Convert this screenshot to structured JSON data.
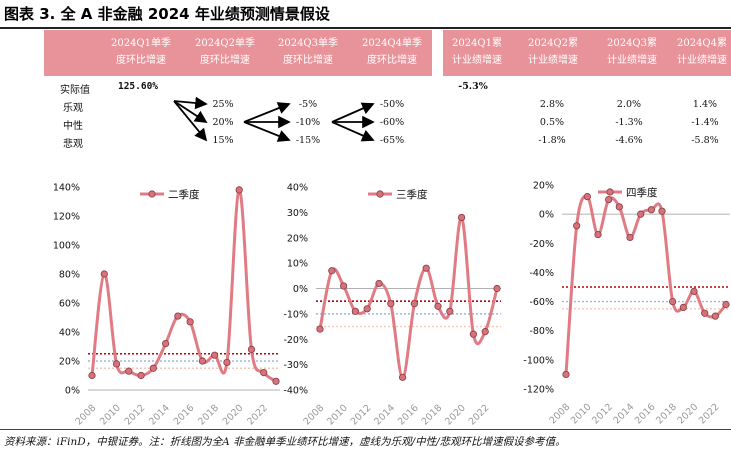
{
  "title": "图表 3. 全 A 非金融 2024 年业绩预测情景假设",
  "table": {
    "headers_single": [
      "2024Q1单季\n度环比增速",
      "2024Q2单季\n度环比增速",
      "2024Q3单季\n度环比增速",
      "2024Q4单季\n度环比增速"
    ],
    "headers_cum": [
      "2024Q1累\n计业绩增速",
      "2024Q2累\n计业绩增速",
      "2024Q3累\n计业绩增速",
      "2024Q4累\n计业绩增速"
    ],
    "row_labels": [
      "实际值",
      "乐观",
      "中性",
      "悲观"
    ],
    "actual_q1": "125.60%",
    "actual_cum_q1": "-5.3%",
    "q2": [
      "25%",
      "20%",
      "15%"
    ],
    "q3": [
      "-5%",
      "-10%",
      "-15%"
    ],
    "q4": [
      "-50%",
      "-60%",
      "-65%"
    ],
    "cum_q2": [
      "2.8%",
      "0.5%",
      "-1.8%"
    ],
    "cum_q3": [
      "2.0%",
      "-1.3%",
      "-4.6%"
    ],
    "cum_q4": [
      "1.4%",
      "-1.4%",
      "-5.8%"
    ]
  },
  "colors": {
    "header_bg": "#e8939a",
    "line": "#e07b84",
    "marker": "#d5727c",
    "optimistic": "#c00000",
    "neutral": "#9bb7e0",
    "pessimistic": "#f4c6b6"
  },
  "chart_data": [
    {
      "type": "line",
      "legend": "二季度",
      "x": [
        2008,
        2009,
        2010,
        2011,
        2012,
        2013,
        2014,
        2015,
        2016,
        2017,
        2018,
        2019,
        2020,
        2021,
        2022,
        2023
      ],
      "values": [
        10,
        80,
        18,
        13,
        10,
        15,
        32,
        51,
        47,
        20,
        24,
        19,
        138,
        28,
        12,
        6
      ],
      "ylim": [
        0,
        140
      ],
      "yticks": [
        "0%",
        "20%",
        "40%",
        "60%",
        "80%",
        "100%",
        "120%",
        "140%"
      ],
      "xticks": [
        "2008",
        "2010",
        "2012",
        "2014",
        "2016",
        "2018",
        "2020",
        "2022"
      ],
      "ref_lines": [
        25,
        20,
        15
      ]
    },
    {
      "type": "line",
      "legend": "三季度",
      "x": [
        2008,
        2009,
        2010,
        2011,
        2012,
        2013,
        2014,
        2015,
        2016,
        2017,
        2018,
        2019,
        2020,
        2021,
        2022,
        2023
      ],
      "values": [
        -16,
        7,
        1,
        -9,
        -8,
        2,
        -6,
        -35,
        -6,
        8,
        -7,
        -9,
        28,
        -18,
        -17,
        0
      ],
      "ylim": [
        -40,
        40
      ],
      "yticks": [
        "-40%",
        "-30%",
        "-20%",
        "-10%",
        "0%",
        "10%",
        "20%",
        "30%",
        "40%"
      ],
      "xticks": [
        "2008",
        "2010",
        "2012",
        "2014",
        "2016",
        "2018",
        "2020",
        "2022"
      ],
      "ref_lines": [
        -5,
        -10,
        -15
      ]
    },
    {
      "type": "line",
      "legend": "四季度",
      "x": [
        2008,
        2009,
        2010,
        2011,
        2012,
        2013,
        2014,
        2015,
        2016,
        2017,
        2018,
        2019,
        2020,
        2021,
        2022,
        2023
      ],
      "values": [
        -110,
        -8,
        12,
        -14,
        10,
        5,
        -16,
        0,
        3,
        2,
        -60,
        -64,
        -53,
        -68,
        -70,
        -62
      ],
      "ylim": [
        -120,
        20
      ],
      "yticks": [
        "-120%",
        "-100%",
        "-80%",
        "-60%",
        "-40%",
        "-20%",
        "0%",
        "20%"
      ],
      "xticks": [
        "2008",
        "2010",
        "2012",
        "2014",
        "2016",
        "2018",
        "2020",
        "2022"
      ],
      "ref_lines": [
        -50,
        -60,
        -65
      ]
    }
  ],
  "footer": "资料来源：iFinD，中银证券。注：折线图为全A 非金融单季业绩环比增速，虚线为乐观/中性/悲观环比增速假设参考值。"
}
